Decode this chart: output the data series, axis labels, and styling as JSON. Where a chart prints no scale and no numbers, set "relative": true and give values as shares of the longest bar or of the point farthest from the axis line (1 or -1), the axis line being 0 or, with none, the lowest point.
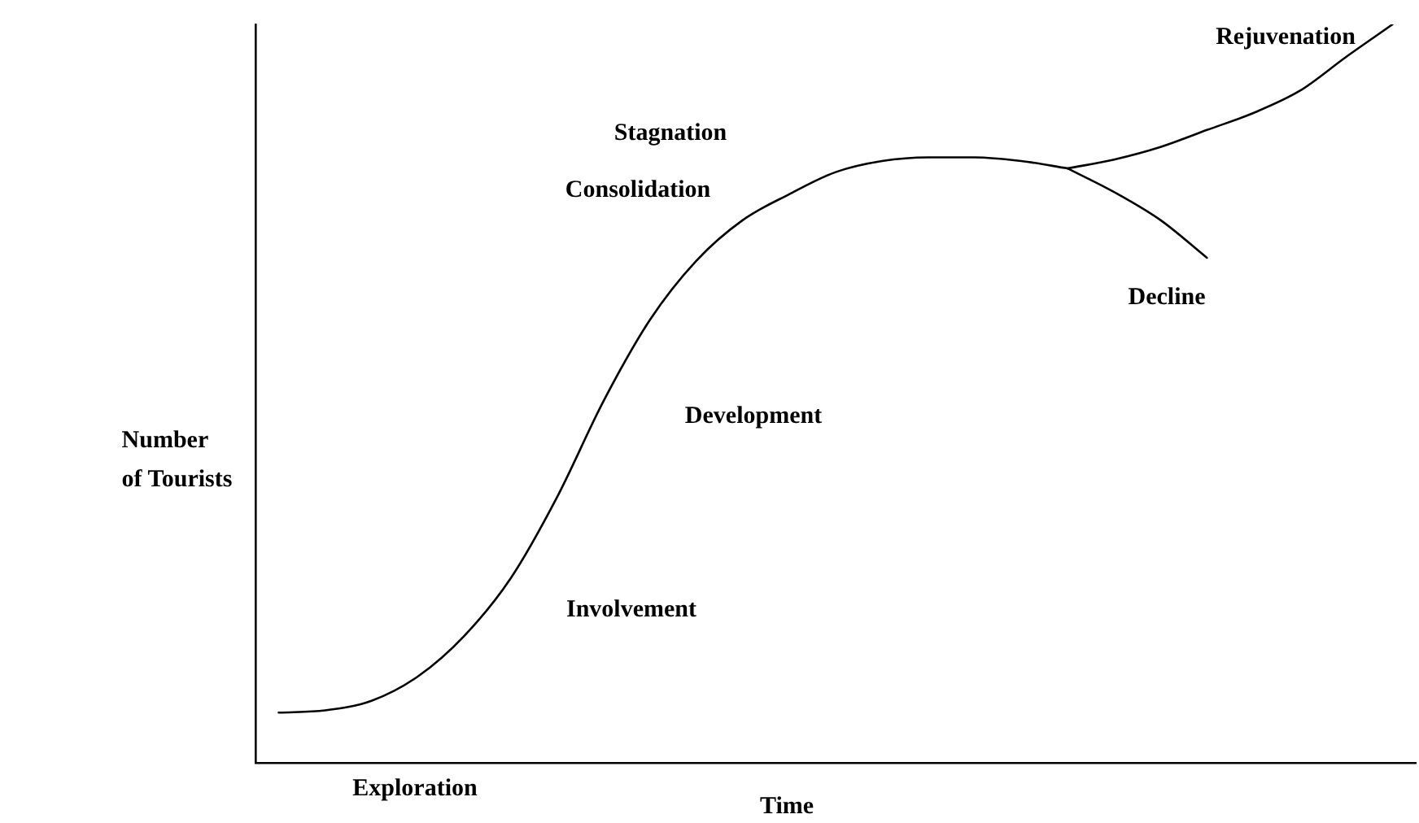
{
  "chart_data": {
    "type": "line",
    "relative": true,
    "xlabel": "Time",
    "ylabel": "Number\nof Tourists",
    "categories": [
      null,
      null,
      null,
      null,
      null,
      null,
      null,
      null,
      null,
      null,
      null,
      null,
      null,
      null,
      null,
      null,
      null,
      null,
      null,
      null,
      null,
      null,
      null,
      null,
      null
    ],
    "series": [
      {
        "color": "#000000",
        "values": [
          0.068,
          0.071,
          0.084,
          0.117,
          0.172,
          0.25,
          0.36,
          0.49,
          0.6,
          0.68,
          0.735,
          0.77,
          0.8,
          0.815,
          0.82,
          0.82,
          0.815,
          0.805,
          null,
          null,
          null,
          null,
          null,
          null,
          null
        ]
      },
      {
        "color": "#000000",
        "values": [
          null,
          null,
          null,
          null,
          null,
          null,
          null,
          null,
          null,
          null,
          null,
          null,
          null,
          null,
          null,
          null,
          null,
          0.805,
          0.817,
          0.834,
          0.857,
          0.88,
          0.91,
          0.956,
          1
        ]
      },
      {
        "color": "#000000",
        "values": [
          null,
          null,
          null,
          null,
          null,
          null,
          null,
          null,
          null,
          null,
          null,
          null,
          null,
          null,
          null,
          null,
          null,
          0.805,
          0.773,
          0.735,
          0.684,
          null,
          null,
          null,
          null
        ]
      }
    ],
    "annotations": [
      "Exploration",
      "Involvement",
      "Development",
      "Consolidation",
      "Stagnation",
      "Rejuvenation",
      "Decline"
    ],
    "grid": false,
    "legend": false,
    "marker": "none",
    "line_style": "solid"
  }
}
